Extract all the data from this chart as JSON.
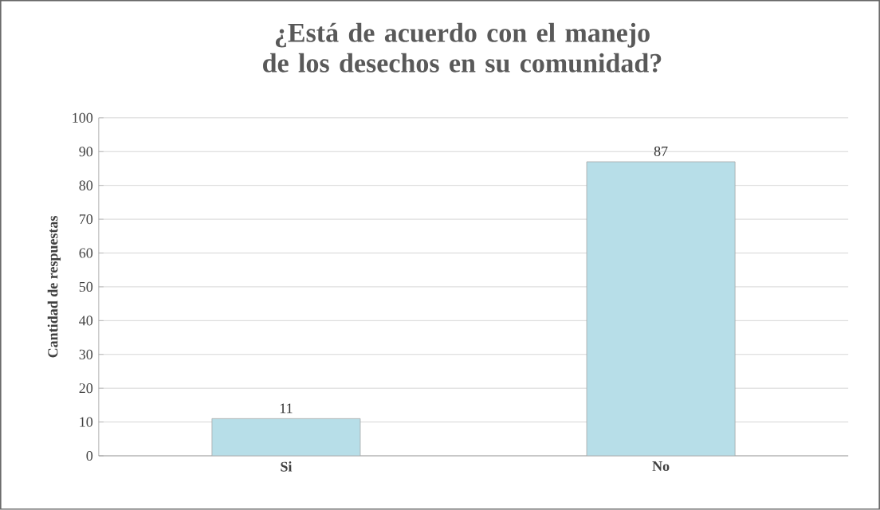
{
  "chart_data": {
    "type": "bar",
    "title": "¿Está de acuerdo con el manejo de los desechos en su comunidad?",
    "ylabel": "Cantidad de respuestas",
    "categories": [
      "Si",
      "No"
    ],
    "values": [
      11,
      87
    ],
    "color": "#b7dee8",
    "ylim": [
      0,
      100
    ],
    "yticks": [
      0,
      10,
      20,
      30,
      40,
      50,
      60,
      70,
      80,
      90,
      100
    ],
    "grid": "y",
    "data_labels": true
  }
}
